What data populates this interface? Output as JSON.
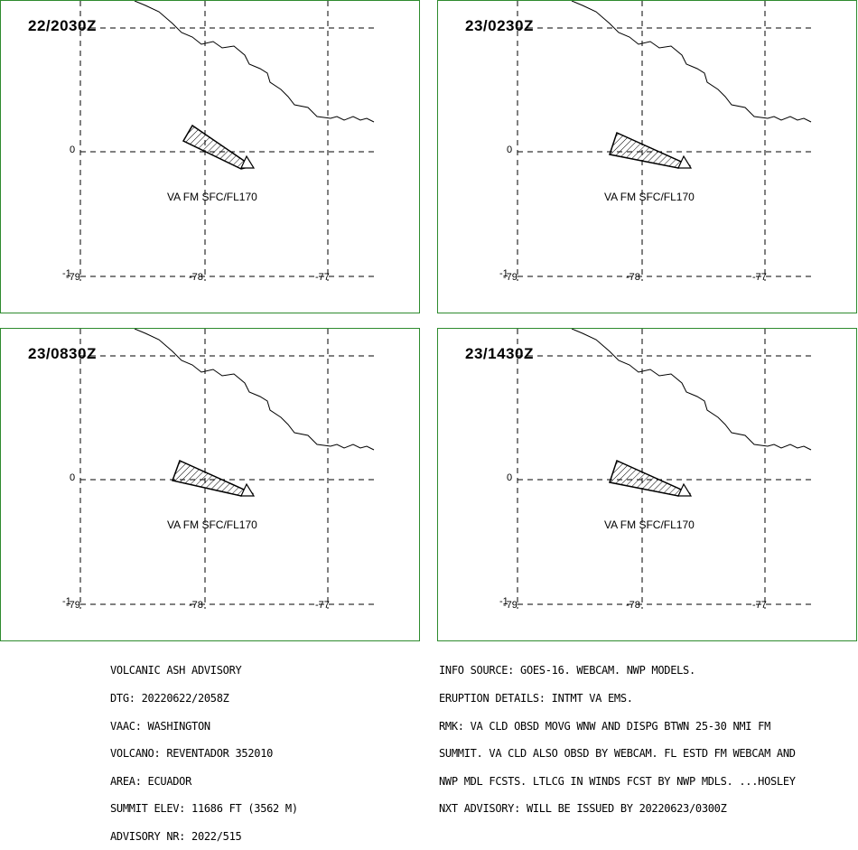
{
  "panels": [
    {
      "time": "22/2030Z",
      "label": "VA FM SFC/FL170"
    },
    {
      "time": "23/0230Z",
      "label": "VA FM SFC/FL170"
    },
    {
      "time": "23/0830Z",
      "label": "VA FM SFC/FL170"
    },
    {
      "time": "23/1430Z",
      "label": "VA FM SFC/FL170"
    }
  ],
  "grid": {
    "lat_labels": [
      "0",
      "-1"
    ],
    "lon_labels": [
      "-79",
      "-78",
      "-77"
    ]
  },
  "colors": {
    "frame": "#2e8b2e",
    "lines": "#000000"
  },
  "advisory": {
    "title": "VOLCANIC ASH ADVISORY",
    "dtg": "DTG: 20220622/2058Z",
    "vaac": "VAAC: WASHINGTON",
    "volcano": "VOLCANO: REVENTADOR 352010",
    "area": "AREA: ECUADOR",
    "summit": "SUMMIT ELEV: 11686 FT (3562 M)",
    "advisory_nr": "ADVISORY NR: 2022/515"
  },
  "remarks": {
    "info_source": "INFO SOURCE: GOES-16. WEBCAM. NWP MODELS.",
    "eruption": "ERUPTION DETAILS: INTMT VA EMS.",
    "rmk1": "RMK: VA CLD OBSD MOVG WNW AND DISPG BTWN 25-30 NMI FM",
    "rmk2": "SUMMIT. VA CLD ALSO OBSD BY WEBCAM. FL ESTD FM WEBCAM AND",
    "rmk3": "NWP MDL FCSTS. LTLCG IN WINDS FCST BY NWP MDLS. ...HOSLEY",
    "next": "NXT ADVISORY: WILL BE ISSUED BY 20220623/0300Z"
  }
}
